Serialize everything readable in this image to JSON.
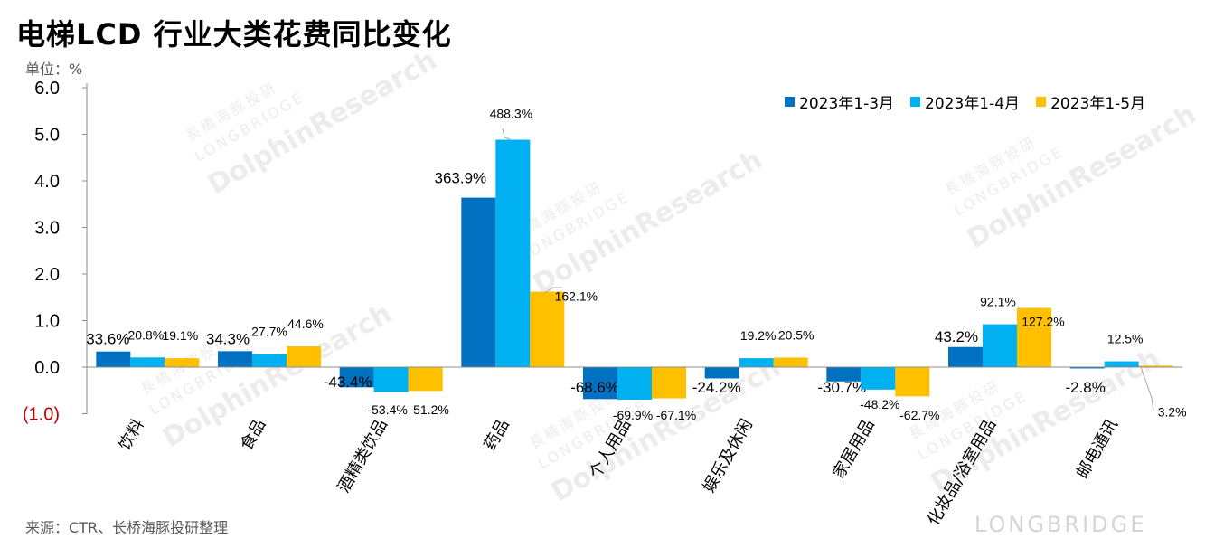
{
  "title": "电梯LCD 行业大类花费同比变化",
  "unit_label": "单位：%",
  "source": "来源：CTR、长桥海豚投研整理",
  "watermark": {
    "brand": "LONGBRIDGE",
    "lines": [
      "長橋海豚投研",
      "LONGBRIDGE",
      "DolphinResearch"
    ]
  },
  "chart_data": {
    "type": "bar",
    "title": "电梯LCD 行业大类花费同比变化",
    "ylabel": "单位：%",
    "ylim": [
      -1.0,
      6.0
    ],
    "yticks": [
      "(1.0)",
      "0.0",
      "1.0",
      "2.0",
      "3.0",
      "4.0",
      "5.0",
      "6.0"
    ],
    "ytick_values": [
      -1,
      0,
      1,
      2,
      3,
      4,
      5,
      6
    ],
    "legend_position": "top-right",
    "categories": [
      "饮料",
      "食品",
      "酒精类饮品",
      "药品",
      "个人用品",
      "娱乐及休闲",
      "家居用品",
      "化妆品/浴室用品",
      "邮电通讯"
    ],
    "series": [
      {
        "name": "2023年1-3月",
        "color": "#0070C0",
        "values": [
          0.336,
          0.343,
          -0.434,
          3.639,
          -0.686,
          -0.242,
          -0.307,
          0.432,
          -0.028
        ],
        "labels": [
          "33.6%",
          "34.3%",
          "-43.4%",
          "363.9%",
          "-68.6%",
          "-24.2%",
          "-30.7%",
          "43.2%",
          "-2.8%"
        ]
      },
      {
        "name": "2023年1-4月",
        "color": "#00B0F0",
        "values": [
          0.208,
          0.277,
          -0.534,
          4.883,
          -0.699,
          0.192,
          -0.482,
          0.921,
          0.125
        ],
        "labels": [
          "20.8%",
          "27.7%",
          "-53.4%",
          "488.3%",
          "-69.9%",
          "19.2%",
          "-48.2%",
          "92.1%",
          "12.5%"
        ]
      },
      {
        "name": "2023年1-5月",
        "color": "#FFC000",
        "values": [
          0.191,
          0.446,
          -0.512,
          1.621,
          -0.671,
          0.205,
          -0.627,
          1.272,
          0.032
        ],
        "labels": [
          "19.1%",
          "44.6%",
          "-51.2%",
          "162.1%",
          "-67.1%",
          "20.5%",
          "-62.7%",
          "127.2%",
          "3.2%"
        ]
      }
    ]
  }
}
